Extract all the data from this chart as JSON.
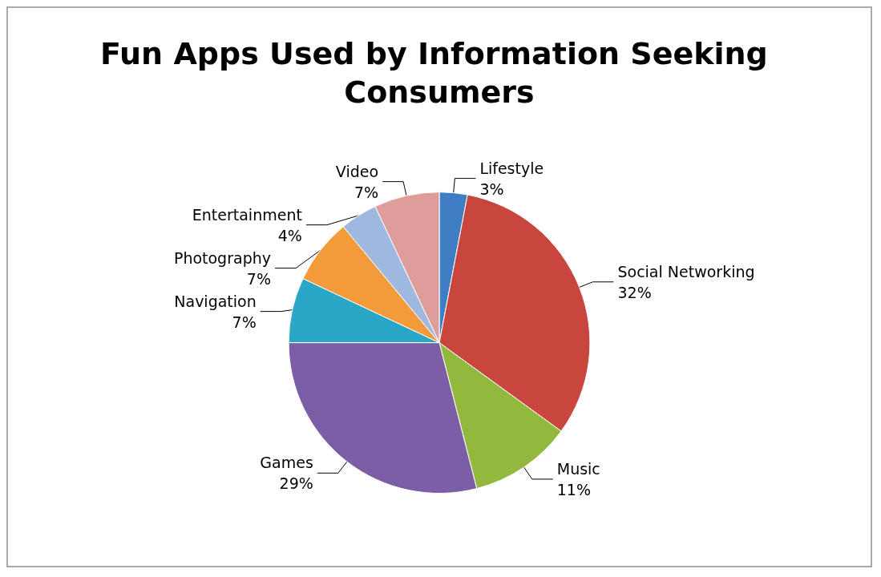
{
  "chart_data": {
    "type": "pie",
    "title": "Fun Apps Used by Information Seeking Consumers",
    "categories": [
      "Lifestyle",
      "Social Networking",
      "Music",
      "Games",
      "Navigation",
      "Photography",
      "Entertainment",
      "Video"
    ],
    "values": [
      3,
      32,
      11,
      29,
      7,
      7,
      4,
      7
    ],
    "value_labels": [
      "3%",
      "32%",
      "11%",
      "29%",
      "7%",
      "7%",
      "4%",
      "7%"
    ],
    "colors": [
      "#3f7ec4",
      "#c9463f",
      "#92b93e",
      "#7b5ea5",
      "#2aa7c7",
      "#f39a3b",
      "#9fb8df",
      "#de9d9b"
    ],
    "legend": false
  }
}
